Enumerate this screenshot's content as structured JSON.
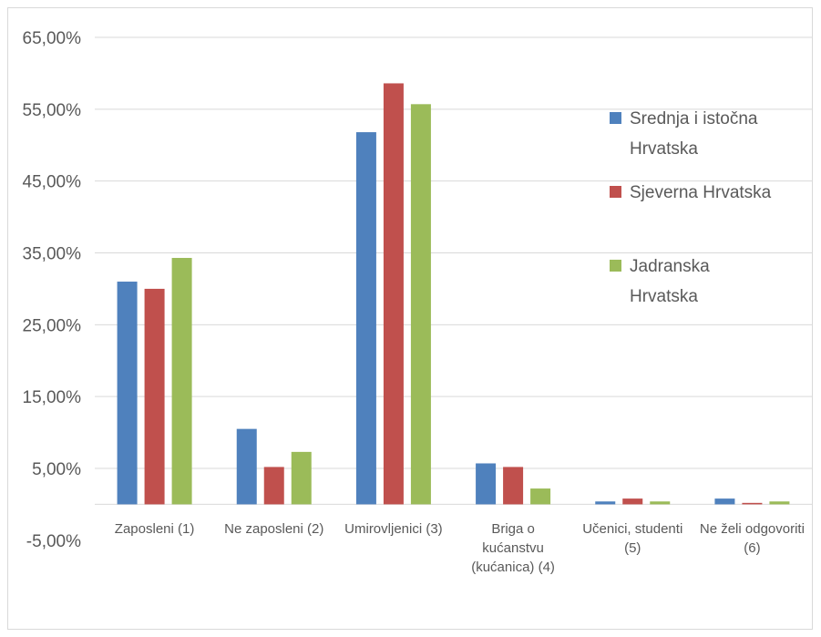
{
  "chart_data": {
    "type": "bar",
    "categories": [
      [
        "Zaposleni (1)"
      ],
      [
        "Ne zaposleni (2)"
      ],
      [
        "Umirovljenici (3)"
      ],
      [
        "Briga o",
        "kućanstvu",
        "(kućanica) (4)"
      ],
      [
        "Učenici, studenti",
        "(5)"
      ],
      [
        "Ne želi odgovoriti",
        "(6)"
      ]
    ],
    "series": [
      {
        "name": [
          "Srednja i istočna",
          "Hrvatska"
        ],
        "color": "#4f81bd",
        "values": [
          31.0,
          10.5,
          51.8,
          5.7,
          0.4,
          0.8
        ]
      },
      {
        "name": [
          "Sjeverna Hrvatska"
        ],
        "color": "#c0504d",
        "values": [
          30.0,
          5.2,
          58.6,
          5.2,
          0.8,
          0.2
        ]
      },
      {
        "name": [
          "Jadranska",
          "Hrvatska"
        ],
        "color": "#9bbb59",
        "values": [
          34.3,
          7.3,
          55.7,
          2.2,
          0.4,
          0.4
        ]
      }
    ],
    "yticks": [
      "65,00%",
      "55,00%",
      "45,00%",
      "35,00%",
      "25,00%",
      "15,00%",
      "5,00%",
      "-5,00%"
    ],
    "ytick_values": [
      65,
      55,
      45,
      35,
      25,
      15,
      5,
      -5
    ],
    "ylim": [
      -5,
      65
    ],
    "grid": true,
    "legend_position": "right"
  }
}
